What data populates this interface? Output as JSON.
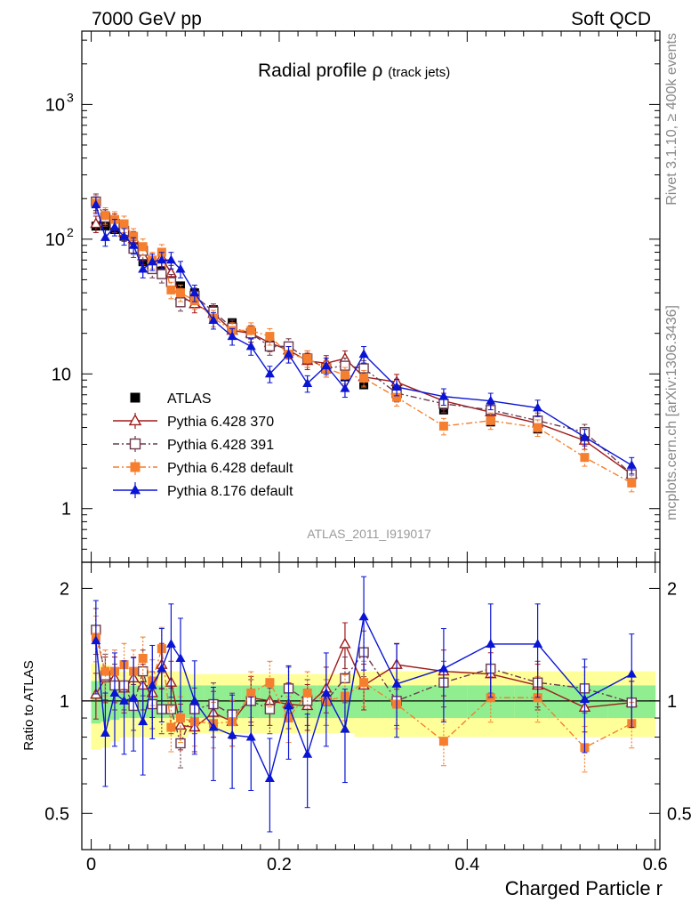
{
  "header": {
    "left": "7000 GeV pp",
    "right": "Soft QCD"
  },
  "side_labels": {
    "rivet": "Rivet 3.1.10, ≥ 400k events",
    "mcplots": "mcplots.cern.ch [arXiv:1306.3436]"
  },
  "chart_data": {
    "type": "scatter",
    "title": "Radial profile",
    "title_symbol": "ρ",
    "title_suffix": "(track jets)",
    "analysis_label": "ATLAS_2011_I919017",
    "xlabel": "Charged Particle r",
    "ylabel_ratio": "Ratio to ATLAS",
    "xlim": [
      -0.01,
      0.605
    ],
    "ylim_main": [
      0.4,
      3500
    ],
    "yscale_main": "log",
    "ylim_ratio": [
      0.4,
      2.35
    ],
    "yscale_ratio": "log",
    "x_ticks": [
      "0",
      "0.2",
      "0.4",
      "0.6"
    ],
    "x_tick_values": [
      0,
      0.2,
      0.4,
      0.6
    ],
    "y_ticks_main": [
      {
        "value": 1,
        "label": "1"
      },
      {
        "value": 10,
        "label": "10"
      },
      {
        "value": 100,
        "label": "10",
        "exp": "2"
      },
      {
        "value": 1000,
        "label": "10",
        "exp": "3"
      }
    ],
    "y_ticks_ratio": [
      {
        "value": 0.5,
        "label": "0.5"
      },
      {
        "value": 1,
        "label": "1"
      },
      {
        "value": 2,
        "label": "2"
      }
    ],
    "legend_position": "lower-left",
    "x": [
      0.005,
      0.015,
      0.025,
      0.035,
      0.045,
      0.055,
      0.065,
      0.075,
      0.085,
      0.095,
      0.11,
      0.13,
      0.15,
      0.17,
      0.19,
      0.21,
      0.23,
      0.25,
      0.27,
      0.29,
      0.325,
      0.375,
      0.425,
      0.475,
      0.525,
      0.575
    ],
    "series": [
      {
        "name": "ATLAS",
        "color": "#000000",
        "marker": "square-filled",
        "line": "none",
        "values": [
          125,
          125,
          118,
          105,
          88,
          68,
          62,
          58,
          50,
          45,
          40,
          30,
          24,
          20,
          17,
          15,
          13,
          11,
          9.5,
          8.3,
          7.5,
          5.4,
          4.4,
          3.9,
          3.4,
          1.8
        ]
      },
      {
        "name": "Pythia 6.428 370",
        "color": "#a01b1b",
        "marker": "triangle-open",
        "line": "solid",
        "values": [
          130,
          145,
          135,
          112,
          100,
          75,
          65,
          73,
          56,
          38,
          33,
          28,
          21,
          20,
          17,
          15,
          12.5,
          12,
          13,
          9.5,
          8.7,
          6.3,
          5.2,
          4.3,
          3.2,
          1.8
        ]
      },
      {
        "name": "Pythia 6.428 391",
        "color": "#6b3a4d",
        "marker": "square-open",
        "line": "dashdot",
        "values": [
          190,
          145,
          130,
          115,
          85,
          82,
          60,
          55,
          48,
          34,
          38,
          29,
          22,
          20,
          16,
          16,
          13,
          11,
          11.5,
          11,
          7.2,
          6.0,
          5.4,
          4.5,
          3.7,
          1.8
        ]
      },
      {
        "name": "Pythia 6.428 default",
        "color": "#f57f2e",
        "marker": "square-filled",
        "line": "dashdot",
        "values": [
          185,
          150,
          140,
          130,
          105,
          88,
          70,
          80,
          42,
          40,
          35,
          26,
          21,
          21,
          19,
          14,
          13,
          11,
          9.8,
          9.3,
          6.7,
          4.1,
          4.5,
          4.0,
          2.4,
          1.55
        ]
      },
      {
        "name": "Pythia 8.176 default",
        "color": "#0a14d4",
        "marker": "triangle-filled",
        "line": "solid",
        "values": [
          180,
          103,
          123,
          105,
          90,
          60,
          68,
          70,
          70,
          60,
          40,
          25,
          19,
          16,
          10,
          14,
          8.5,
          11.5,
          7.8,
          14,
          8,
          6.8,
          6.3,
          5.6,
          3.4,
          2.1
        ]
      }
    ],
    "ratio": {
      "reference_line": 1,
      "band_inner_color": "#90ee90",
      "band_outer_color": "#ffff99",
      "series": [
        {
          "name": "Pythia 6.428 370",
          "values": [
            1.04,
            1.15,
            1.15,
            1.08,
            1.15,
            1.1,
            1.05,
            1.25,
            1.12,
            0.86,
            0.85,
            0.93,
            0.88,
            1.02,
            1.0,
            0.98,
            0.97,
            1.08,
            1.42,
            1.1,
            1.25,
            1.2,
            1.18,
            1.1,
            0.96,
            0.99
          ]
        },
        {
          "name": "Pythia 6.428 391",
          "values": [
            1.55,
            1.17,
            1.1,
            1.1,
            0.97,
            1.2,
            0.98,
            0.95,
            0.95,
            0.77,
            0.95,
            0.98,
            0.92,
            1.0,
            0.95,
            1.08,
            1.0,
            1.0,
            1.15,
            1.35,
            1.0,
            1.12,
            1.22,
            1.12,
            1.08,
            0.99
          ]
        },
        {
          "name": "Pythia 6.428 default",
          "values": [
            1.48,
            1.2,
            1.2,
            1.25,
            1.2,
            1.3,
            1.13,
            1.38,
            0.85,
            0.9,
            0.88,
            0.87,
            0.88,
            1.05,
            1.12,
            0.9,
            1.05,
            1.0,
            1.03,
            1.12,
            0.98,
            0.78,
            1.02,
            1.02,
            0.75,
            0.87
          ]
        },
        {
          "name": "Pythia 8.176 default",
          "values": [
            1.45,
            0.82,
            1.05,
            1.0,
            1.02,
            0.88,
            1.1,
            1.22,
            1.42,
            1.3,
            1.0,
            0.85,
            0.81,
            0.8,
            0.62,
            0.97,
            0.72,
            1.05,
            0.84,
            1.68,
            1.11,
            1.22,
            1.42,
            1.42,
            1.01,
            1.18
          ]
        }
      ],
      "band_inner": [
        0.13,
        0.12,
        0.11,
        0.1,
        0.1,
        0.1,
        0.1,
        0.1,
        0.1,
        0.1,
        0.1,
        0.1,
        0.1,
        0.1,
        0.1,
        0.1,
        0.1,
        0.1,
        0.1,
        0.1,
        0.1,
        0.1,
        0.1,
        0.1,
        0.1,
        0.1
      ],
      "band_outer": [
        0.26,
        0.25,
        0.22,
        0.2,
        0.2,
        0.2,
        0.2,
        0.2,
        0.2,
        0.2,
        0.18,
        0.18,
        0.18,
        0.18,
        0.18,
        0.18,
        0.18,
        0.18,
        0.18,
        0.2,
        0.2,
        0.2,
        0.2,
        0.2,
        0.2,
        0.2
      ]
    }
  }
}
